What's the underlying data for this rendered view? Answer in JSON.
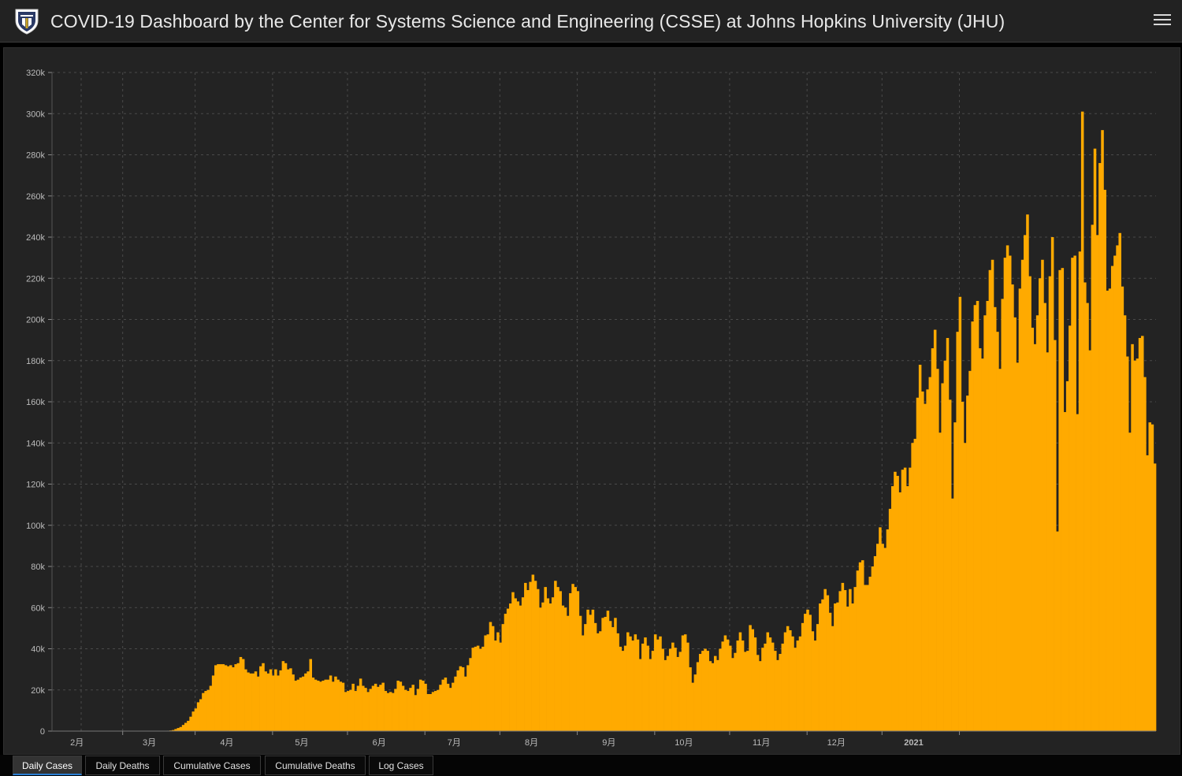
{
  "header": {
    "title": "COVID-19 Dashboard by the Center for Systems Science and Engineering (CSSE) at Johns Hopkins University (JHU)"
  },
  "tabs": [
    {
      "label": "Daily Cases",
      "active": true
    },
    {
      "label": "Daily Deaths",
      "active": false
    },
    {
      "label": "Cumulative Cases",
      "active": false
    },
    {
      "label": "Cumulative Deaths",
      "active": false
    },
    {
      "label": "Log Cases",
      "active": false
    }
  ],
  "colors": {
    "bar": "#FFAA00",
    "background": "#232323",
    "grid": "#4a4a4a",
    "tick_text": "#bbbbbb"
  },
  "chart_data": {
    "type": "bar",
    "title": "Daily Cases",
    "xlabel": "",
    "ylabel": "",
    "ylim": [
      0,
      320000
    ],
    "grid": true,
    "yticks": [
      {
        "value": 0,
        "label": "0"
      },
      {
        "value": 20000,
        "label": "20k"
      },
      {
        "value": 40000,
        "label": "40k"
      },
      {
        "value": 60000,
        "label": "60k"
      },
      {
        "value": 80000,
        "label": "80k"
      },
      {
        "value": 100000,
        "label": "100k"
      },
      {
        "value": 120000,
        "label": "120k"
      },
      {
        "value": 140000,
        "label": "140k"
      },
      {
        "value": 160000,
        "label": "160k"
      },
      {
        "value": 180000,
        "label": "180k"
      },
      {
        "value": 200000,
        "label": "200k"
      },
      {
        "value": 220000,
        "label": "220k"
      },
      {
        "value": 240000,
        "label": "240k"
      },
      {
        "value": 260000,
        "label": "260k"
      },
      {
        "value": 280000,
        "label": "280k"
      },
      {
        "value": 300000,
        "label": "300k"
      },
      {
        "value": 320000,
        "label": "320k"
      }
    ],
    "xticks": [
      {
        "date": "2020-02-01",
        "label": "2月",
        "bold": false
      },
      {
        "date": "2020-03-01",
        "label": "3月",
        "bold": false
      },
      {
        "date": "2020-04-01",
        "label": "4月",
        "bold": false
      },
      {
        "date": "2020-05-01",
        "label": "5月",
        "bold": false
      },
      {
        "date": "2020-06-01",
        "label": "6月",
        "bold": false
      },
      {
        "date": "2020-07-01",
        "label": "7月",
        "bold": false
      },
      {
        "date": "2020-08-01",
        "label": "8月",
        "bold": false
      },
      {
        "date": "2020-09-01",
        "label": "9月",
        "bold": false
      },
      {
        "date": "2020-10-01",
        "label": "10月",
        "bold": false
      },
      {
        "date": "2020-11-01",
        "label": "11月",
        "bold": false
      },
      {
        "date": "2020-12-01",
        "label": "12月",
        "bold": false
      },
      {
        "date": "2021-01-01",
        "label": "2021",
        "bold": true
      }
    ],
    "series": [
      {
        "name": "Daily Cases",
        "start_date": "2020-01-22",
        "values": [
          0,
          0,
          0,
          0,
          0,
          0,
          0,
          0,
          0,
          0,
          0,
          0,
          0,
          0,
          0,
          0,
          0,
          0,
          0,
          0,
          0,
          0,
          0,
          0,
          0,
          0,
          0,
          0,
          0,
          0,
          0,
          0,
          0,
          0,
          0,
          0,
          0,
          0,
          0,
          0,
          0,
          0,
          0,
          0,
          0,
          100,
          200,
          300,
          500,
          1000,
          1500,
          2000,
          3000,
          4000,
          5000,
          7000,
          9500,
          11000,
          14000,
          15500,
          18500,
          19500,
          20000,
          22000,
          27000,
          32000,
          32500,
          32500,
          32500,
          32000,
          31500,
          32000,
          31000,
          32500,
          33000,
          36000,
          35000,
          30000,
          28500,
          28000,
          28000,
          29000,
          26500,
          31500,
          33000,
          29000,
          28000,
          30000,
          27000,
          30000,
          27000,
          29500,
          34000,
          33000,
          30000,
          30500,
          27500,
          24500,
          25000,
          26000,
          26500,
          28000,
          29000,
          35000,
          26000,
          25000,
          24500,
          24000,
          24500,
          25000,
          25000,
          27000,
          24000,
          26500,
          25000,
          24000,
          23500,
          19000,
          19500,
          20000,
          23000,
          19500,
          22000,
          25500,
          22000,
          21000,
          19000,
          20500,
          22000,
          23000,
          21500,
          22500,
          23500,
          19500,
          18500,
          19000,
          18500,
          20500,
          24500,
          24000,
          22000,
          20000,
          19500,
          21000,
          22500,
          17500,
          20500,
          25000,
          24500,
          23000,
          18000,
          18000,
          19000,
          19500,
          20000,
          22500,
          25000,
          26000,
          23000,
          21000,
          23500,
          26500,
          29500,
          31500,
          31000,
          26500,
          32000,
          35500,
          40500,
          41000,
          41500,
          40000,
          41000,
          46500,
          47000,
          53000,
          51000,
          44000,
          48000,
          43000,
          52000,
          57000,
          59500,
          62000,
          67500,
          64500,
          63000,
          61000,
          65000,
          72000,
          68500,
          72500,
          76000,
          73000,
          69000,
          60000,
          62500,
          70000,
          64500,
          62000,
          65000,
          73000,
          70000,
          68000,
          61000,
          60000,
          56000,
          67000,
          71500,
          70000,
          68000,
          56000,
          46500,
          52000,
          59000,
          56500,
          59000,
          52500,
          47500,
          48500,
          55000,
          55500,
          58500,
          53500,
          50500,
          55000,
          47500,
          41000,
          39000,
          41500,
          48000,
          46000,
          44000,
          47000,
          44500,
          35000,
          42500,
          45500,
          41500,
          35000,
          39000,
          47000,
          44500,
          46000,
          40000,
          34500,
          36500,
          40000,
          43000,
          40500,
          36000,
          38500,
          46500,
          47000,
          43000,
          31000,
          23500,
          27500,
          33500,
          37500,
          39000,
          40000,
          39000,
          34000,
          33000,
          36500,
          34500,
          40000,
          43500,
          46500,
          44500,
          41500,
          35500,
          38000,
          44000,
          48000,
          44000,
          38500,
          39000,
          51500,
          49500,
          45500,
          37000,
          34000,
          40500,
          42500,
          48000,
          45500,
          43000,
          39000,
          34500,
          37500,
          42500,
          48000,
          51000,
          49000,
          46000,
          40500,
          44000,
          46000,
          52500,
          57000,
          59000,
          56500,
          48500,
          44000,
          52000,
          62000,
          64000,
          69000,
          66000,
          57500,
          51000,
          62000,
          62500,
          68000,
          72000,
          68500,
          60500,
          69000,
          62000,
          70000,
          78000,
          82000,
          83000,
          71000,
          71000,
          75000,
          80000,
          85000,
          91000,
          99000,
          91000,
          89000,
          98000,
          108000,
          119000,
          126000,
          124000,
          116000,
          127000,
          128000,
          119000,
          128000,
          140000,
          142000,
          162000,
          178000,
          165000,
          159000,
          166000,
          172000,
          186000,
          195000,
          176000,
          145000,
          169000,
          180000,
          191000,
          161000,
          113000,
          150000,
          194000,
          211000,
          160000,
          140000,
          163000,
          175000,
          199000,
          207000,
          209000,
          186000,
          181000,
          202000,
          209000,
          224000,
          229000,
          206000,
          194000,
          176000,
          210000,
          230000,
          236000,
          231000,
          217000,
          201000,
          179000,
          215000,
          229000,
          241000,
          251000,
          221000,
          196000,
          188000,
          202000,
          220000,
          229000,
          208000,
          184000,
          221000,
          240000,
          190000,
          97000,
          224000,
          225000,
          155000,
          170000,
          197000,
          230000,
          231000,
          154000,
          233000,
          301000,
          218000,
          208000,
          185000,
          246000,
          283000,
          241000,
          276000,
          292000,
          263000,
          214000,
          215000,
          226000,
          231000,
          236000,
          242000,
          216000,
          202000,
          182000,
          145000,
          188000,
          180000,
          181000,
          191000,
          192000,
          172000,
          134000,
          150000,
          149000,
          130000
        ]
      }
    ]
  }
}
